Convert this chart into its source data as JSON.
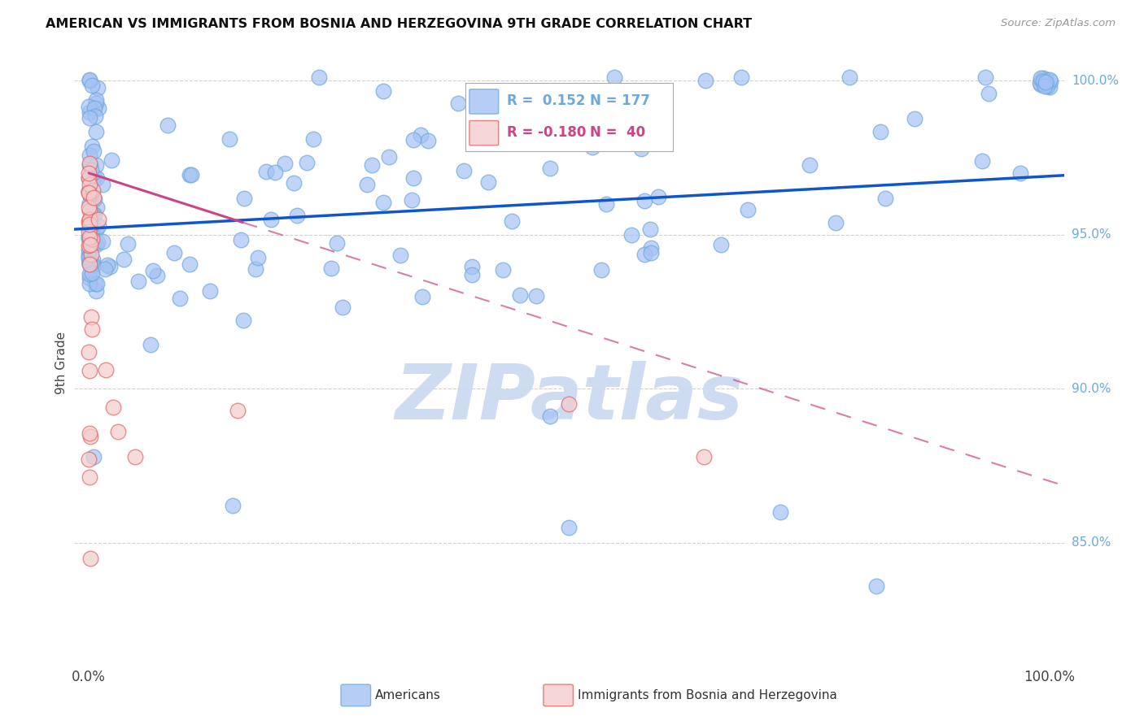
{
  "title": "AMERICAN VS IMMIGRANTS FROM BOSNIA AND HERZEGOVINA 9TH GRADE CORRELATION CHART",
  "source": "Source: ZipAtlas.com",
  "ylabel": "9th Grade",
  "legend_blue_r": "0.152",
  "legend_blue_n": "177",
  "legend_pink_r": "-0.180",
  "legend_pink_n": "40",
  "legend_blue_label": "Americans",
  "legend_pink_label": "Immigrants from Bosnia and Herzegovina",
  "blue_color": "#a4c2f4",
  "blue_edge_color": "#6fa8dc",
  "pink_color": "#f4cccc",
  "pink_edge_color": "#e06666",
  "trend_blue_color": "#1155cc",
  "trend_pink_color": "#cc4488",
  "watermark_color": "#c9d9f0",
  "background_color": "#ffffff",
  "ylim": [
    0.812,
    1.005
  ],
  "xlim": [
    -0.015,
    1.015
  ],
  "grid_color": "#cccccc",
  "yline_values": [
    0.85,
    0.9,
    0.95,
    1.0
  ],
  "yline_labels": [
    "85.0%",
    "90.0%",
    "95.0%",
    "100.0%"
  ]
}
